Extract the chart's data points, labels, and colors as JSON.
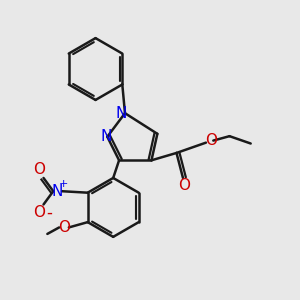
{
  "bg_color": "#e8e8e8",
  "bond_color": "#1a1a1a",
  "n_color": "#0000ee",
  "o_color": "#cc0000",
  "lw": 1.8,
  "figsize": [
    3.0,
    3.0
  ],
  "dpi": 100,
  "xlim": [
    0,
    10
  ],
  "ylim": [
    0,
    10
  ]
}
